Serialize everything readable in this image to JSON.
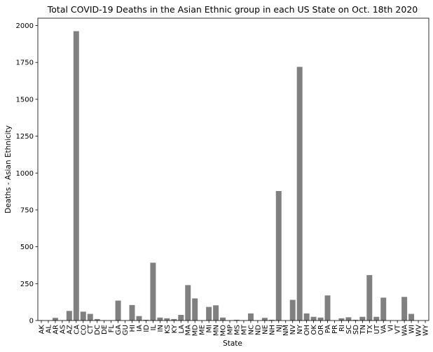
{
  "chart_data": {
    "type": "bar",
    "title": "Total COVID-19 Deaths in the Asian Ethnic group in each US State on Oct. 18th 2020",
    "xlabel": "State",
    "ylabel": "Deaths - Asian Ethnicity",
    "ylim": [
      0,
      2050
    ],
    "yticks": [
      0,
      250,
      500,
      750,
      1000,
      1250,
      1500,
      1750,
      2000
    ],
    "grid": false,
    "bar_color": "#808080",
    "categories": [
      "AK",
      "AL",
      "AR",
      "AS",
      "AZ",
      "CA",
      "CO",
      "CT",
      "DC",
      "DE",
      "FL",
      "GA",
      "GU",
      "HI",
      "IA",
      "ID",
      "IL",
      "IN",
      "KS",
      "KY",
      "LA",
      "MA",
      "MD",
      "ME",
      "MI",
      "MN",
      "MO",
      "MP",
      "MS",
      "MT",
      "NC",
      "ND",
      "NE",
      "NH",
      "NJ",
      "NM",
      "NV",
      "NY",
      "OH",
      "OK",
      "OR",
      "PA",
      "PR",
      "RI",
      "SC",
      "SD",
      "TN",
      "TX",
      "UT",
      "VA",
      "VI",
      "VT",
      "WA",
      "WI",
      "WV",
      "WY"
    ],
    "values": [
      2,
      0,
      18,
      0,
      65,
      1962,
      60,
      45,
      10,
      0,
      0,
      135,
      0,
      105,
      30,
      5,
      392,
      20,
      15,
      10,
      38,
      240,
      150,
      0,
      92,
      103,
      20,
      0,
      5,
      0,
      48,
      0,
      18,
      5,
      878,
      0,
      140,
      1720,
      48,
      25,
      20,
      170,
      0,
      15,
      22,
      5,
      25,
      308,
      25,
      155,
      0,
      0,
      160,
      45,
      0,
      0
    ]
  }
}
